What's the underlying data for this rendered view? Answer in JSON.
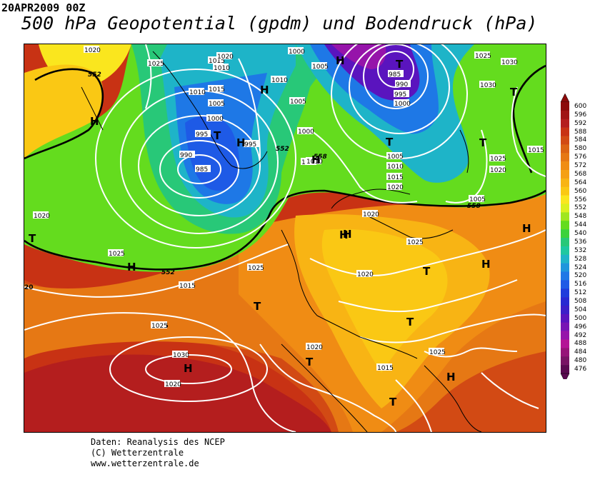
{
  "header": {
    "date_label": "20APR2009 00Z",
    "title": "500 hPa Geopotential (gpdm) und Bodendruck (hPa)"
  },
  "credits": {
    "line1": "Daten: Reanalysis des NCEP",
    "line2": "(C) Wetterzentrale",
    "line3": "www.wetterzentrale.de"
  },
  "legend": {
    "levels": [
      "600",
      "596",
      "592",
      "588",
      "584",
      "580",
      "576",
      "572",
      "568",
      "564",
      "560",
      "556",
      "552",
      "548",
      "544",
      "540",
      "536",
      "532",
      "528",
      "524",
      "520",
      "516",
      "512",
      "508",
      "504",
      "500",
      "496",
      "492",
      "488",
      "484",
      "480",
      "476"
    ],
    "colors": [
      "#8c0a0a",
      "#a01414",
      "#b41e1e",
      "#c83214",
      "#d24a14",
      "#dc6414",
      "#e67814",
      "#f08c14",
      "#f5a014",
      "#f8b414",
      "#fac814",
      "#fae61e",
      "#dcf01e",
      "#a0e61e",
      "#64dc1e",
      "#3cd23c",
      "#28c878",
      "#1ec8a0",
      "#1eb4c8",
      "#1e96dc",
      "#1e78e6",
      "#1e5ae6",
      "#1e3cdc",
      "#2828d2",
      "#3c1ec8",
      "#5a14be",
      "#7814b4",
      "#9614aa",
      "#b41496",
      "#961478",
      "#781464",
      "#5a0a50"
    ]
  },
  "map": {
    "pressure_labels": [
      "1020",
      "1025",
      "1015",
      "1010",
      "1000",
      "1005",
      "985",
      "990",
      "995",
      "1000",
      "1005",
      "1010",
      "1015",
      "1020",
      "1025",
      "1030",
      "1030",
      "1025",
      "1020",
      "1015",
      "1010",
      "1005",
      "1000",
      "995",
      "990",
      "985",
      "1020",
      "1015",
      "1010",
      "1005",
      "1000",
      "995",
      "1015",
      "1010",
      "1005",
      "1020",
      "1025",
      "1020",
      "1025",
      "1015",
      "1025",
      "1020",
      "1015",
      "1025",
      "1015",
      "1025",
      "1020",
      "1030",
      "1020",
      "1025"
    ],
    "geopotential_labels": [
      "552",
      "552",
      "552",
      "558",
      "558"
    ],
    "centers": [
      {
        "type": "H"
      },
      {
        "type": "H"
      },
      {
        "type": "H"
      },
      {
        "type": "H"
      },
      {
        "type": "H"
      },
      {
        "type": "H"
      },
      {
        "type": "H"
      },
      {
        "type": "H"
      },
      {
        "type": "H"
      },
      {
        "type": "H"
      },
      {
        "type": "H"
      },
      {
        "type": "H"
      },
      {
        "type": "T"
      },
      {
        "type": "T"
      },
      {
        "type": "T"
      },
      {
        "type": "T"
      },
      {
        "type": "T"
      },
      {
        "type": "T"
      },
      {
        "type": "T"
      },
      {
        "type": "T"
      },
      {
        "type": "T"
      },
      {
        "type": "T"
      },
      {
        "type": "T"
      }
    ],
    "edge_label": "20"
  }
}
